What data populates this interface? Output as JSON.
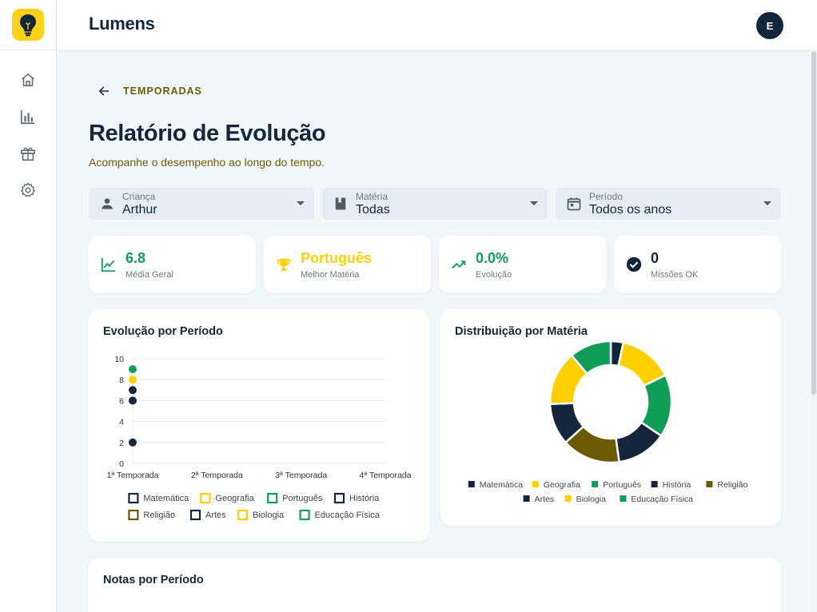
{
  "app": {
    "title": "Lumens",
    "avatar_initial": "E"
  },
  "sidebar": {
    "items": [
      {
        "name": "home",
        "icon": "home-icon"
      },
      {
        "name": "reports",
        "icon": "bar-chart-icon"
      },
      {
        "name": "rewards",
        "icon": "gift-icon"
      },
      {
        "name": "settings",
        "icon": "gear-icon"
      }
    ]
  },
  "breadcrumb": {
    "back_label": "TEMPORADAS"
  },
  "page": {
    "title": "Relatório de Evolução",
    "subtitle": "Acompanhe o desempenho ao longo do tempo."
  },
  "filters": [
    {
      "label": "Criança",
      "value": "Arthur",
      "icon": "person-icon"
    },
    {
      "label": "Matéria",
      "value": "Todas",
      "icon": "book-icon"
    },
    {
      "label": "Período",
      "value": "Todos os anos",
      "icon": "calendar-icon"
    }
  ],
  "kpis": [
    {
      "value": "6.8",
      "label": "Média Geral",
      "icon": "trend-chart-icon",
      "color": "#0f9d58"
    },
    {
      "value": "Português",
      "label": "Melhor Matéria",
      "icon": "trophy-icon",
      "color": "#ffd000"
    },
    {
      "value": "0.0%",
      "label": "Evolução",
      "icon": "trending-up-icon",
      "color": "#0f9d58"
    },
    {
      "value": "0",
      "label": "Missões OK",
      "icon": "check-circle-icon",
      "color": "#13263c"
    }
  ],
  "evolution_card": {
    "title": "Evolução por Período"
  },
  "distribution_card": {
    "title": "Distribuição por Matéria"
  },
  "notes_card": {
    "title": "Notas por Período"
  },
  "colors": {
    "navy": "#13263c",
    "yellow": "#ffd000",
    "green": "#0f9d58",
    "olive": "#6d5c00",
    "brown": "#6b5a00"
  },
  "chart_data": [
    {
      "type": "scatter",
      "title": "Evolução por Período",
      "categories": [
        "1ª Temporada",
        "2ª Temporada",
        "3ª Temporada",
        "4ª Temporada"
      ],
      "ylim": [
        0,
        10
      ],
      "yticks": [
        0,
        2,
        4,
        6,
        8,
        10
      ],
      "grid": true,
      "legend_position": "bottom",
      "series": [
        {
          "name": "Matemática",
          "color": "#13263c",
          "values": [
            6,
            null,
            null,
            null
          ]
        },
        {
          "name": "Geografia",
          "color": "#ffd000",
          "values": [
            8,
            null,
            null,
            null
          ]
        },
        {
          "name": "Português",
          "color": "#0f9d58",
          "values": [
            9,
            null,
            null,
            null
          ]
        },
        {
          "name": "História",
          "color": "#13263c",
          "values": [
            7,
            null,
            null,
            null
          ]
        },
        {
          "name": "Religião",
          "color": "#6b5a00",
          "values": [
            null,
            null,
            null,
            null
          ]
        },
        {
          "name": "Artes",
          "color": "#13263c",
          "values": [
            2,
            null,
            null,
            null
          ]
        },
        {
          "name": "Biologia",
          "color": "#ffd000",
          "values": [
            null,
            null,
            null,
            null
          ]
        },
        {
          "name": "Educação Física",
          "color": "#0f9d58",
          "values": [
            null,
            null,
            null,
            null
          ]
        }
      ]
    },
    {
      "type": "pie",
      "title": "Distribuição por Matéria",
      "legend_position": "bottom",
      "labels": [
        "Matemática",
        "Geografia",
        "Português",
        "História",
        "Religião",
        "Artes",
        "Biologia",
        "Educação Física"
      ],
      "values": [
        3,
        13,
        15,
        12,
        14,
        10,
        13,
        10
      ],
      "colors": [
        "#13263c",
        "#ffd000",
        "#0f9d58",
        "#13263c",
        "#6b5a00",
        "#13263c",
        "#ffd000",
        "#0f9d58"
      ]
    }
  ]
}
